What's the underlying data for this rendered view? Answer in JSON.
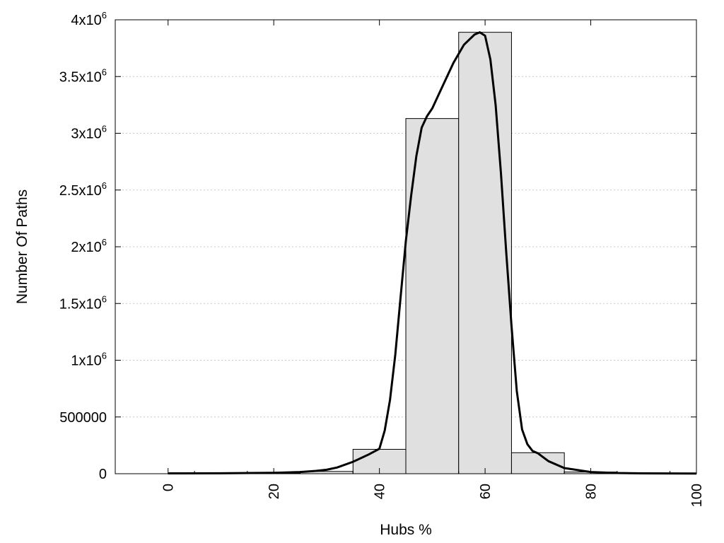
{
  "chart_data": {
    "type": "bar",
    "xlabel": "Hubs %",
    "ylabel": "Number Of Paths",
    "xlim": [
      -10,
      100
    ],
    "ylim": [
      0,
      4000000
    ],
    "grid": "horizontal dotted",
    "bar_color": "#e0e0e0",
    "curve_color": "#000000",
    "x_ticks": [
      {
        "value": 0,
        "label": "0"
      },
      {
        "value": 20,
        "label": "20"
      },
      {
        "value": 40,
        "label": "40"
      },
      {
        "value": 60,
        "label": "60"
      },
      {
        "value": 80,
        "label": "80"
      },
      {
        "value": 100,
        "label": "100"
      }
    ],
    "y_ticks": [
      {
        "value": 0,
        "base": "0",
        "exp": ""
      },
      {
        "value": 500000,
        "base": "500000",
        "exp": ""
      },
      {
        "value": 1000000,
        "base": "1x10",
        "exp": "6"
      },
      {
        "value": 1500000,
        "base": "1.5x10",
        "exp": "6"
      },
      {
        "value": 2000000,
        "base": "2x10",
        "exp": "6"
      },
      {
        "value": 2500000,
        "base": "2.5x10",
        "exp": "6"
      },
      {
        "value": 3000000,
        "base": "3x10",
        "exp": "6"
      },
      {
        "value": 3500000,
        "base": "3.5x10",
        "exp": "6"
      },
      {
        "value": 4000000,
        "base": "4x10",
        "exp": "6"
      }
    ],
    "bars": [
      {
        "x0": 0,
        "x1": 5,
        "value": 3000
      },
      {
        "x0": 5,
        "x1": 15,
        "value": 4000
      },
      {
        "x0": 15,
        "x1": 25,
        "value": 6000
      },
      {
        "x0": 25,
        "x1": 35,
        "value": 20000
      },
      {
        "x0": 35,
        "x1": 45,
        "value": 215000
      },
      {
        "x0": 45,
        "x1": 55,
        "value": 3130000
      },
      {
        "x0": 55,
        "x1": 65,
        "value": 3890000
      },
      {
        "x0": 65,
        "x1": 75,
        "value": 185000
      },
      {
        "x0": 75,
        "x1": 85,
        "value": 15000
      },
      {
        "x0": 85,
        "x1": 95,
        "value": 5000
      },
      {
        "x0": 95,
        "x1": 100,
        "value": 3000
      }
    ],
    "curve": {
      "x": [
        0,
        10,
        20,
        25,
        28,
        30,
        32,
        35,
        38,
        40,
        41,
        42,
        43,
        44,
        45,
        46,
        47,
        48,
        49,
        50,
        52,
        54,
        56,
        58,
        59,
        60,
        61,
        62,
        63,
        64,
        65,
        66,
        67,
        68,
        69,
        70,
        72,
        75,
        80,
        85,
        90,
        100
      ],
      "y": [
        3000,
        4000,
        8000,
        15000,
        25000,
        35000,
        55000,
        105000,
        170000,
        220000,
        380000,
        650000,
        1050000,
        1550000,
        2050000,
        2450000,
        2800000,
        3050000,
        3150000,
        3220000,
        3420000,
        3620000,
        3780000,
        3870000,
        3890000,
        3860000,
        3650000,
        3250000,
        2650000,
        1950000,
        1300000,
        730000,
        390000,
        260000,
        200000,
        180000,
        110000,
        50000,
        15000,
        6000,
        3000,
        2000
      ]
    }
  }
}
